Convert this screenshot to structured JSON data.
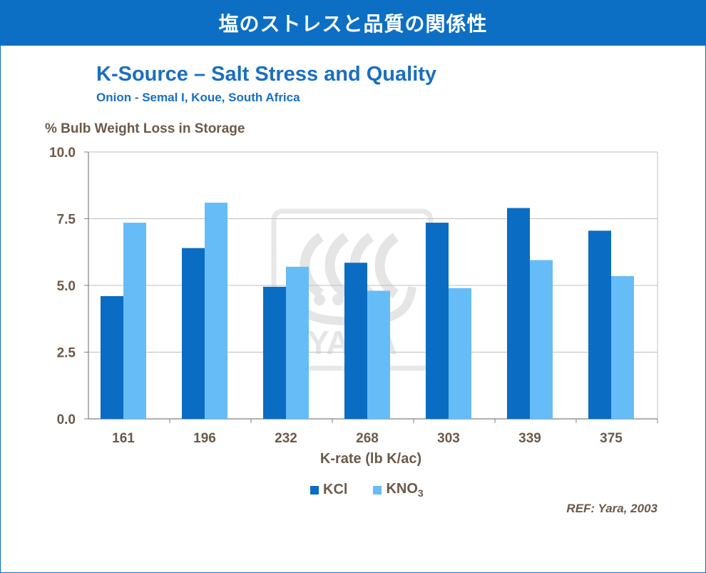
{
  "header": {
    "title": "塩のストレスと品質の関係性"
  },
  "watermark": {
    "text": "YARA",
    "icon": "yara-viking-ship-logo"
  },
  "colors": {
    "header_bg": "#0d6fc4",
    "kcl": "#0a6cc2",
    "kno3": "#66bcf7",
    "text": "#6b5a49",
    "title": "#1a6fc0",
    "grid": "#bfbfbf"
  },
  "chart_data": {
    "type": "bar",
    "title": "K-Source – Salt Stress and Quality",
    "subtitle": "Onion  - Semal I, Koue, South Africa",
    "ylabel": "%  Bulb Weight Loss in Storage",
    "xlabel": "K-rate (lb K/ac)",
    "categories": [
      "161",
      "196",
      "232",
      "268",
      "303",
      "339",
      "375"
    ],
    "ylim": [
      0,
      10
    ],
    "yticks": [
      "0.0",
      "2.5",
      "5.0",
      "7.5",
      "10.0"
    ],
    "grid": true,
    "legend_position": "bottom-center",
    "series": [
      {
        "name": "KCl",
        "label_main": "KCl",
        "label_sub": "",
        "color": "#0a6cc2",
        "values": [
          4.6,
          6.4,
          4.95,
          5.85,
          7.35,
          7.9,
          7.05
        ]
      },
      {
        "name": "KNO3",
        "label_main": "KNO",
        "label_sub": "3",
        "color": "#66bcf7",
        "values": [
          7.35,
          8.1,
          5.7,
          4.8,
          4.9,
          5.95,
          5.35
        ]
      }
    ],
    "source": "REF: Yara, 2003"
  }
}
